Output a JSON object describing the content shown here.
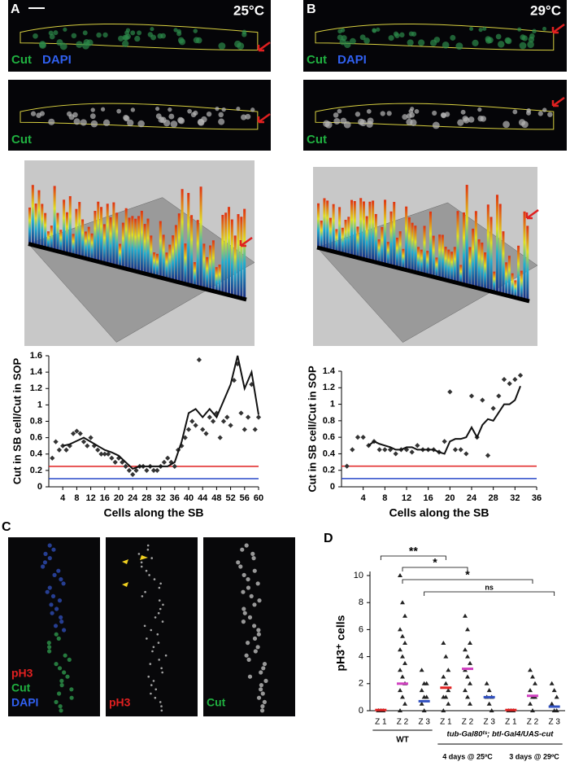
{
  "panels": {
    "A": {
      "label": "A",
      "temp": "25°C",
      "stain_top": [
        "Cut",
        "DAPI"
      ],
      "stain_bottom": "Cut"
    },
    "B": {
      "label": "B",
      "temp": "29°C",
      "stain_top": [
        "Cut",
        "DAPI"
      ],
      "stain_bottom": "Cut"
    },
    "C": {
      "label": "C",
      "image1": [
        "pH3",
        "Cut",
        "DAPI"
      ],
      "image2": "pH3",
      "image3": "Cut"
    },
    "D": {
      "label": "D"
    }
  },
  "chart_data": [
    {
      "type": "line",
      "ylabel": "Cut in SB cell/Cut in SOP",
      "xlabel": "Cells along the SB",
      "xlim": [
        0,
        60
      ],
      "xticks": [
        4,
        8,
        12,
        16,
        20,
        24,
        28,
        32,
        36,
        40,
        44,
        48,
        52,
        56,
        60
      ],
      "ylim": [
        0,
        1.6
      ],
      "yticks": [
        0,
        0.2,
        0.4,
        0.6,
        0.8,
        1,
        1.2,
        1.4,
        1.6
      ],
      "hlines": [
        {
          "value": 0.25,
          "color": "#e02020"
        },
        {
          "value": 0.1,
          "color": "#2848c8"
        }
      ],
      "series": [
        {
          "type": "scatter",
          "color": "#333333",
          "x": [
            1,
            2,
            3,
            4,
            5,
            6,
            7,
            8,
            9,
            10,
            11,
            12,
            13,
            14,
            15,
            16,
            17,
            18,
            19,
            20,
            21,
            22,
            23,
            24,
            25,
            26,
            27,
            28,
            29,
            30,
            31,
            32,
            33,
            34,
            35,
            36,
            37,
            38,
            39,
            40,
            41,
            42,
            43,
            44,
            45,
            46,
            47,
            48,
            49,
            50,
            51,
            52,
            53,
            54,
            55,
            56,
            57,
            58,
            59,
            60
          ],
          "values": [
            0.35,
            0.55,
            0.45,
            0.5,
            0.45,
            0.5,
            0.65,
            0.68,
            0.65,
            0.55,
            0.5,
            0.6,
            0.5,
            0.45,
            0.4,
            0.4,
            0.4,
            0.35,
            0.3,
            0.35,
            0.3,
            0.25,
            0.2,
            0.15,
            0.2,
            0.25,
            0.25,
            0.2,
            0.25,
            0.2,
            0.2,
            0.25,
            0.3,
            0.35,
            0.3,
            0.25,
            0.45,
            0.5,
            0.6,
            0.7,
            0.8,
            0.75,
            1.55,
            0.7,
            0.65,
            0.85,
            0.8,
            0.9,
            0.6,
            0.8,
            0.85,
            0.75,
            1.3,
            1.5,
            0.9,
            0.7,
            0.85,
            1.25,
            0.7,
            0.85
          ]
        },
        {
          "type": "line",
          "color": "#111111",
          "x": [
            4,
            6,
            8,
            10,
            12,
            14,
            16,
            18,
            20,
            22,
            24,
            26,
            28,
            30,
            32,
            34,
            36,
            38,
            40,
            42,
            44,
            46,
            48,
            50,
            52,
            54,
            56,
            58,
            60
          ],
          "values": [
            0.5,
            0.52,
            0.56,
            0.6,
            0.55,
            0.5,
            0.45,
            0.42,
            0.38,
            0.3,
            0.22,
            0.25,
            0.25,
            0.25,
            0.25,
            0.25,
            0.3,
            0.55,
            0.9,
            0.95,
            0.85,
            0.95,
            0.85,
            1.05,
            1.25,
            1.6,
            1.2,
            1.4,
            0.88
          ]
        }
      ]
    },
    {
      "type": "line",
      "ylabel": "Cut in SB cell/Cut in SOP",
      "xlabel": "Cells along the SB",
      "xlim": [
        0,
        36
      ],
      "xticks": [
        4,
        8,
        12,
        16,
        20,
        24,
        28,
        32,
        36
      ],
      "ylim": [
        0,
        1.4
      ],
      "yticks": [
        0,
        0.2,
        0.4,
        0.6,
        0.8,
        1,
        1.2,
        1.4
      ],
      "hlines": [
        {
          "value": 0.25,
          "color": "#e02020"
        },
        {
          "value": 0.1,
          "color": "#2848c8"
        }
      ],
      "series": [
        {
          "type": "scatter",
          "color": "#333333",
          "x": [
            1,
            2,
            3,
            4,
            5,
            6,
            7,
            8,
            9,
            10,
            11,
            12,
            13,
            14,
            15,
            16,
            17,
            18,
            19,
            20,
            21,
            22,
            23,
            24,
            25,
            26,
            27,
            28,
            29,
            30,
            31,
            32,
            33
          ],
          "values": [
            0.25,
            0.45,
            0.6,
            0.6,
            0.5,
            0.55,
            0.45,
            0.45,
            0.45,
            0.4,
            0.45,
            0.45,
            0.42,
            0.5,
            0.45,
            0.45,
            0.45,
            0.42,
            0.55,
            1.15,
            0.45,
            0.45,
            0.4,
            1.1,
            0.6,
            1.05,
            0.38,
            0.95,
            1.1,
            1.3,
            1.25,
            1.3,
            1.35
          ]
        },
        {
          "type": "line",
          "color": "#111111",
          "x": [
            5,
            6,
            7,
            8,
            9,
            10,
            11,
            12,
            13,
            14,
            15,
            16,
            17,
            18,
            19,
            20,
            21,
            22,
            23,
            24,
            25,
            26,
            27,
            28,
            29,
            30,
            31,
            32,
            33
          ],
          "values": [
            0.5,
            0.55,
            0.52,
            0.5,
            0.48,
            0.45,
            0.45,
            0.48,
            0.48,
            0.45,
            0.45,
            0.45,
            0.45,
            0.42,
            0.4,
            0.55,
            0.58,
            0.58,
            0.6,
            0.72,
            0.6,
            0.75,
            0.82,
            0.8,
            0.9,
            1.0,
            1.0,
            1.05,
            1.22
          ]
        }
      ]
    },
    {
      "type": "dot",
      "ylabel": "pH3⁺ cells",
      "categories": [
        "Z 1",
        "Z 2",
        "Z 3",
        "Z 1",
        "Z 2",
        "Z 3",
        "Z 1",
        "Z 2",
        "Z 3"
      ],
      "ylim": [
        0,
        10
      ],
      "yticks": [
        0,
        2,
        4,
        6,
        8,
        10
      ],
      "point_color": "#222222",
      "points": [
        [
          0,
          0,
          0,
          0
        ],
        [
          10,
          8,
          7,
          6,
          5.5,
          5,
          4.5,
          4,
          3.5,
          3,
          2.5,
          2,
          1.5,
          1,
          0.5,
          0
        ],
        [
          3,
          2,
          2,
          1.5,
          1,
          1,
          0.5,
          0
        ],
        [
          5,
          4,
          3,
          2.5,
          2,
          1.5,
          1,
          1,
          0.5,
          0
        ],
        [
          7,
          6,
          5,
          4.5,
          4,
          3.5,
          3,
          2.5,
          2,
          1.5,
          1,
          0.5
        ],
        [
          2,
          1.5,
          1,
          1,
          0.5,
          0
        ],
        [
          0,
          0,
          0
        ],
        [
          3,
          2.5,
          2,
          1.5,
          1,
          1,
          0.5,
          0
        ],
        [
          2,
          1.5,
          1,
          0.5,
          0,
          0
        ]
      ],
      "means": [
        0.05,
        2.0,
        0.7,
        1.7,
        3.1,
        1.0,
        0.05,
        1.1,
        0.3
      ],
      "mean_colors": [
        "#e02020",
        "#d040c0",
        "#3050c0",
        "#e02020",
        "#d040c0",
        "#3050c0",
        "#e02020",
        "#d040c0",
        "#3050c0"
      ],
      "group_labels": [
        "WT",
        "tub-Gal80ᵗˢ; btl-Gal4/UAS-cut",
        "4 days @ 25ºC",
        "3 days @ 29ºC"
      ],
      "annotations": [
        "**",
        "*",
        "*",
        "ns"
      ]
    }
  ]
}
